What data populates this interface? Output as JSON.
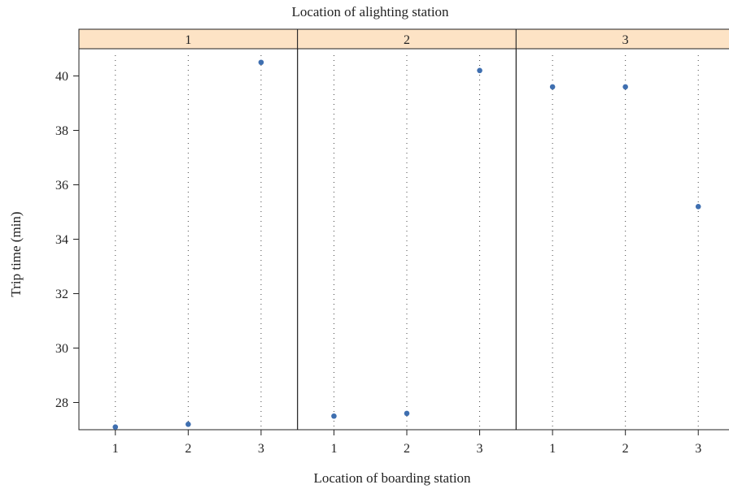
{
  "chart_data": {
    "type": "scatter",
    "title": "Location of alighting station",
    "xlabel": "Location of boarding station",
    "ylabel": "Trip time (min)",
    "ylim": [
      27.0,
      41.0
    ],
    "yticks": [
      28,
      30,
      32,
      34,
      36,
      38,
      40
    ],
    "x_categories": [
      "1",
      "2",
      "3"
    ],
    "panels": [
      {
        "label": "1",
        "points": [
          {
            "x": "1",
            "y": 27.1
          },
          {
            "x": "2",
            "y": 27.2
          },
          {
            "x": "3",
            "y": 40.5
          }
        ]
      },
      {
        "label": "2",
        "points": [
          {
            "x": "1",
            "y": 27.5
          },
          {
            "x": "2",
            "y": 27.6
          },
          {
            "x": "3",
            "y": 40.2
          }
        ]
      },
      {
        "label": "3",
        "points": [
          {
            "x": "1",
            "y": 39.6
          },
          {
            "x": "2",
            "y": 39.6
          },
          {
            "x": "3",
            "y": 35.2
          }
        ]
      }
    ],
    "grid": "vertical dotted",
    "strip_color": "#fde3c5",
    "point_color": "#3f6fb0"
  }
}
